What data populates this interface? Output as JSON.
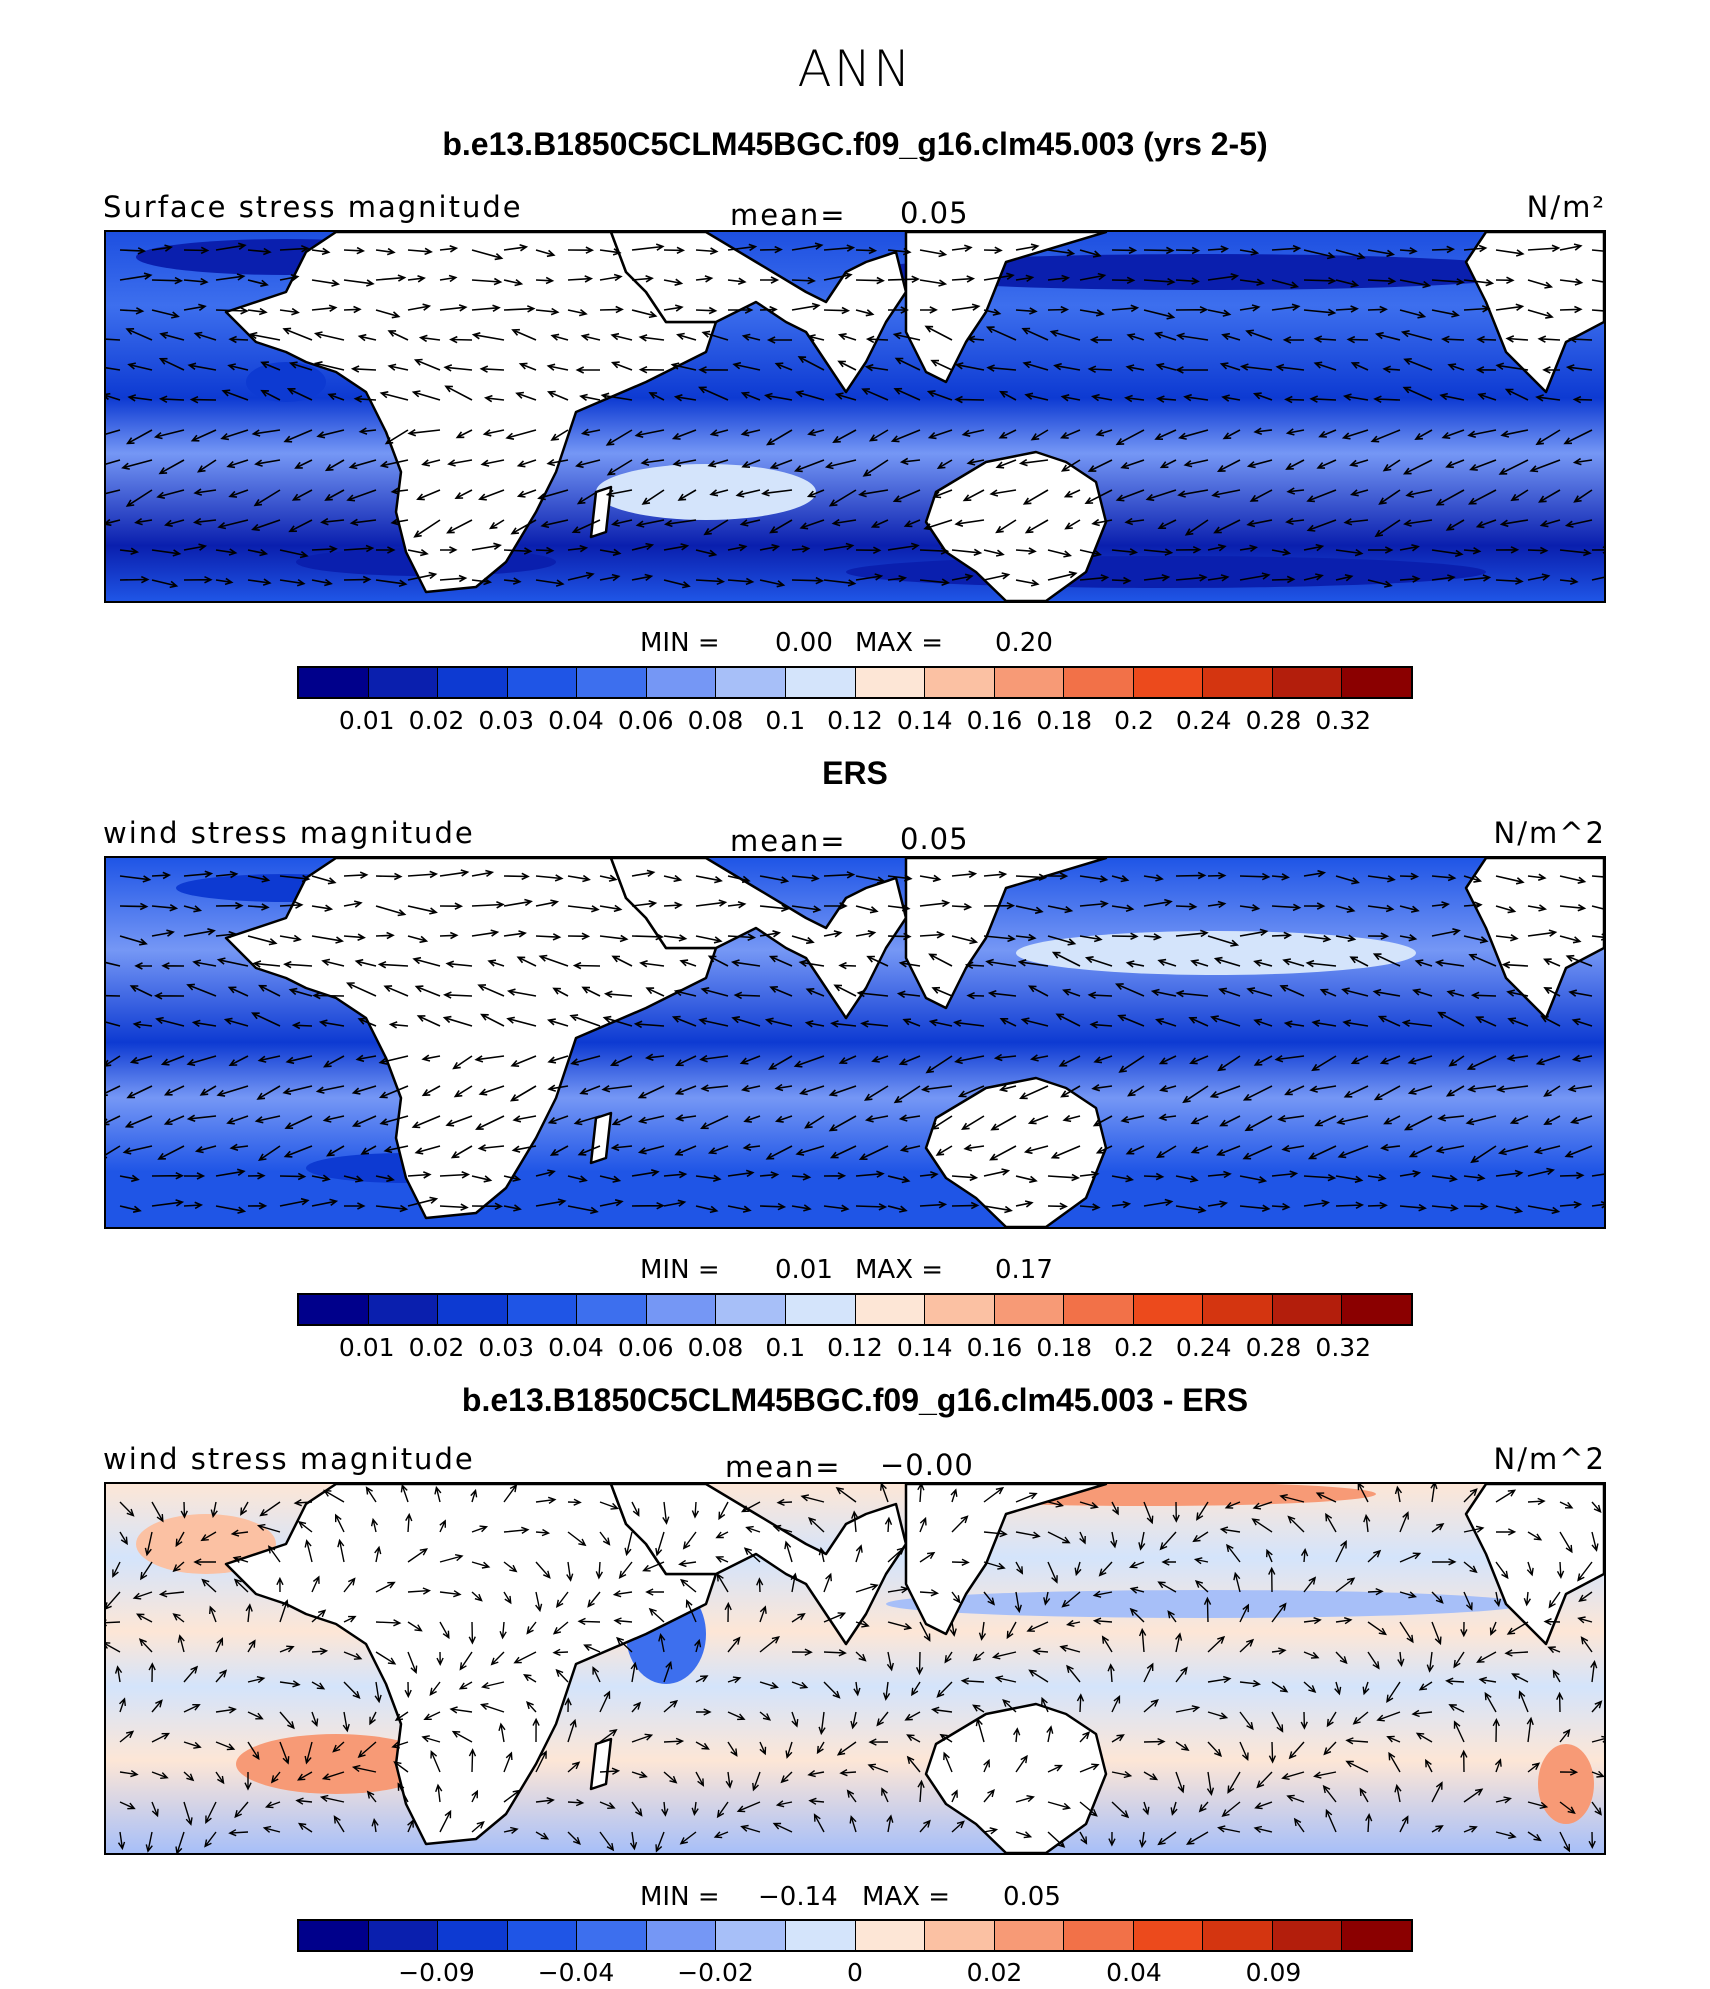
{
  "title": "ANN",
  "colorbar_colors": [
    "#00008b",
    "#0a1fae",
    "#0d3ad2",
    "#1f55e6",
    "#3d6fee",
    "#7597f5",
    "#a7bff8",
    "#d4e4fb",
    "#fde6d6",
    "#fbc1a3",
    "#f79a76",
    "#f27148",
    "#ec4a1c",
    "#d43510",
    "#b31e0c",
    "#8b0000"
  ],
  "panels": [
    {
      "title": "b.e13.B1850C5CLM45BGC.f09_g16.clm45.003 (yrs 2-5)",
      "left_label": "Surface stress magnitude",
      "mean_label": "mean=",
      "mean_value": "0.05",
      "units": "N/m²",
      "min_label": "MIN =",
      "min_value": "0.00",
      "max_label": "MAX =",
      "max_value": "0.20",
      "colorbar_labels": [
        "0.01",
        "0.02",
        "0.03",
        "0.04",
        "0.06",
        "0.08",
        "0.1",
        "0.12",
        "0.14",
        "0.16",
        "0.18",
        "0.2",
        "0.24",
        "0.28",
        "0.32"
      ]
    },
    {
      "title": "ERS",
      "left_label": "wind stress magnitude",
      "mean_label": "mean=",
      "mean_value": "0.05",
      "units": "N/m^2",
      "min_label": "MIN =",
      "min_value": "0.01",
      "max_label": "MAX =",
      "max_value": "0.17",
      "colorbar_labels": [
        "0.01",
        "0.02",
        "0.03",
        "0.04",
        "0.06",
        "0.08",
        "0.1",
        "0.12",
        "0.14",
        "0.16",
        "0.18",
        "0.2",
        "0.24",
        "0.28",
        "0.32"
      ]
    },
    {
      "title": "b.e13.B1850C5CLM45BGC.f09_g16.clm45.003 - ERS",
      "left_label": "wind stress magnitude",
      "mean_label": "mean=",
      "mean_value": "−0.00",
      "units": "N/m^2",
      "min_label": "MIN =",
      "min_value": "−0.14",
      "max_label": "MAX =",
      "max_value": "0.05",
      "colorbar_labels": [
        "−0.09",
        "−0.04",
        "−0.02",
        "0",
        "0.02",
        "0.04",
        "0.09"
      ]
    }
  ]
}
